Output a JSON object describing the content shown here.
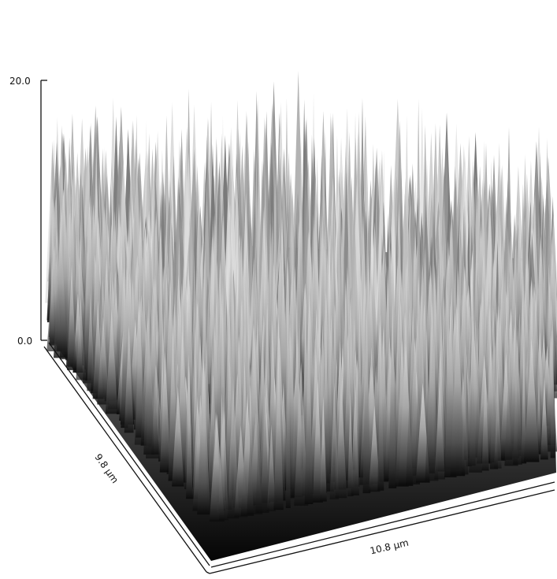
{
  "chart_data": {
    "type": "surface-3d",
    "z_axis": {
      "range": [
        0.0,
        20.0
      ],
      "ticks": [
        "0.0",
        "20.0"
      ]
    },
    "x_axis": {
      "label": "10.8 µm",
      "range": [
        0,
        10.8
      ]
    },
    "y_axis": {
      "label": "9.8 µm",
      "range": [
        0,
        9.8
      ]
    },
    "colormap": "grayscale",
    "grid": false,
    "legend": "none"
  }
}
